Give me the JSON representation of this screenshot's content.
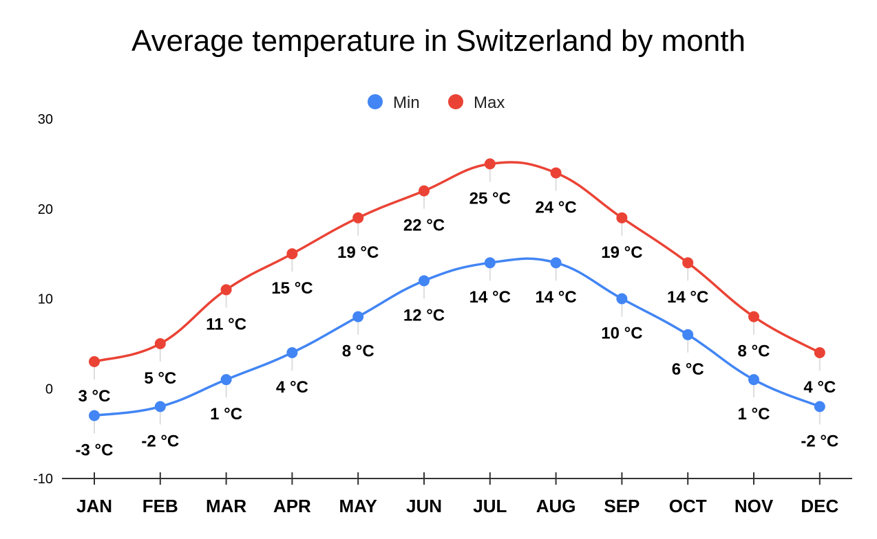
{
  "chart_data": {
    "type": "line",
    "title": "Average temperature in Switzerland by month",
    "categories": [
      "JAN",
      "FEB",
      "MAR",
      "APR",
      "MAY",
      "JUN",
      "JUL",
      "AUG",
      "SEP",
      "OCT",
      "NOV",
      "DEC"
    ],
    "series": [
      {
        "name": "Min",
        "color": "#4285f4",
        "values": [
          -3,
          -2,
          1,
          4,
          8,
          12,
          14,
          14,
          10,
          6,
          1,
          -2
        ],
        "labels": [
          "-3 °C",
          "-2 °C",
          "1 °C",
          "4 °C",
          "8 °C",
          "12 °C",
          "14 °C",
          "14 °C",
          "10 °C",
          "6 °C",
          "1 °C",
          "-2 °C"
        ]
      },
      {
        "name": "Max",
        "color": "#ea4335",
        "values": [
          3,
          5,
          11,
          15,
          19,
          22,
          25,
          24,
          19,
          14,
          8,
          4
        ],
        "labels": [
          "3 °C",
          "5 °C",
          "11 °C",
          "15 °C",
          "19 °C",
          "22 °C",
          "25 °C",
          "24 °C",
          "19 °C",
          "14 °C",
          "8 °C",
          "4 °C"
        ]
      }
    ],
    "yticks": [
      30,
      20,
      10,
      0,
      -10
    ],
    "ylim": [
      -10,
      30
    ],
    "grid": false,
    "legend_position": "top-center",
    "curve": "smooth"
  }
}
